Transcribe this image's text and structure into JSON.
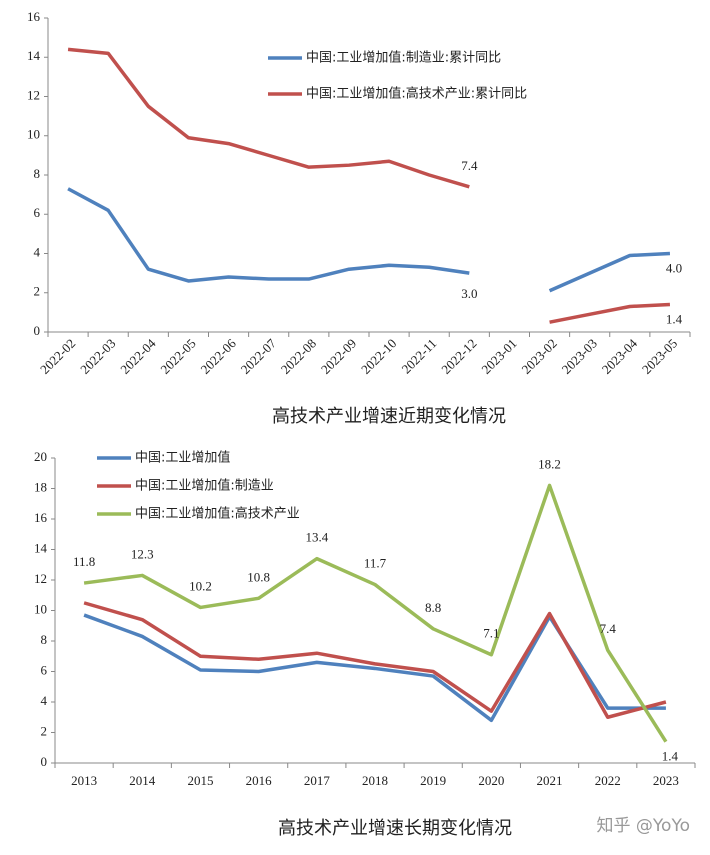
{
  "chart_data": [
    {
      "type": "line",
      "title": "高技术产业增速近期变化情况",
      "categories": [
        "2022-02",
        "2022-03",
        "2022-04",
        "2022-05",
        "2022-06",
        "2022-07",
        "2022-08",
        "2022-09",
        "2022-10",
        "2022-11",
        "2022-12",
        "2023-01",
        "2023-02",
        "2023-03",
        "2023-04",
        "2023-05"
      ],
      "series": [
        {
          "name": "中国:工业增加值:制造业:累计同比",
          "color": "#4f81bd",
          "values": [
            7.3,
            6.2,
            3.2,
            2.6,
            2.8,
            2.7,
            2.7,
            3.2,
            3.4,
            3.3,
            3.0,
            null,
            2.1,
            3.0,
            3.9,
            4.0
          ],
          "value_labels": [
            null,
            null,
            null,
            null,
            null,
            null,
            null,
            null,
            null,
            null,
            "3.0",
            null,
            null,
            null,
            null,
            "4.0"
          ]
        },
        {
          "name": "中国:工业增加值:高技术产业:累计同比",
          "color": "#c0504d",
          "values": [
            14.4,
            14.2,
            11.5,
            9.9,
            9.6,
            9.0,
            8.4,
            8.5,
            8.7,
            8.0,
            7.4,
            null,
            0.5,
            0.9,
            1.3,
            1.4
          ],
          "value_labels": [
            null,
            null,
            null,
            null,
            null,
            null,
            null,
            null,
            null,
            null,
            "7.4",
            null,
            null,
            null,
            null,
            "1.4"
          ]
        }
      ],
      "ylim": [
        0,
        16
      ],
      "yticks": [
        0,
        2,
        4,
        6,
        8,
        10,
        12,
        14,
        16
      ],
      "legend": "upper center",
      "rotate_x_labels": true
    },
    {
      "type": "line",
      "title": "高技术产业增速长期变化情况",
      "categories": [
        "2013",
        "2014",
        "2015",
        "2016",
        "2017",
        "2018",
        "2019",
        "2020",
        "2021",
        "2022",
        "2023"
      ],
      "series": [
        {
          "name": "中国:工业增加值",
          "color": "#4f81bd",
          "values": [
            9.7,
            8.3,
            6.1,
            6.0,
            6.6,
            6.2,
            5.7,
            2.8,
            9.6,
            3.6,
            3.6
          ]
        },
        {
          "name": "中国:工业增加值:制造业",
          "color": "#c0504d",
          "values": [
            10.5,
            9.4,
            7.0,
            6.8,
            7.2,
            6.5,
            6.0,
            3.4,
            9.8,
            3.0,
            4.0
          ]
        },
        {
          "name": "中国:工业增加值:高技术产业",
          "color": "#9bbb59",
          "values": [
            11.8,
            12.3,
            10.2,
            10.8,
            13.4,
            11.7,
            8.8,
            7.1,
            18.2,
            7.4,
            1.4
          ],
          "show_labels": true
        }
      ],
      "ylim": [
        0,
        20
      ],
      "yticks": [
        0,
        2,
        4,
        6,
        8,
        10,
        12,
        14,
        16,
        18,
        20
      ],
      "legend": "upper left",
      "rotate_x_labels": false
    }
  ],
  "watermark": "知乎 @YoYo"
}
